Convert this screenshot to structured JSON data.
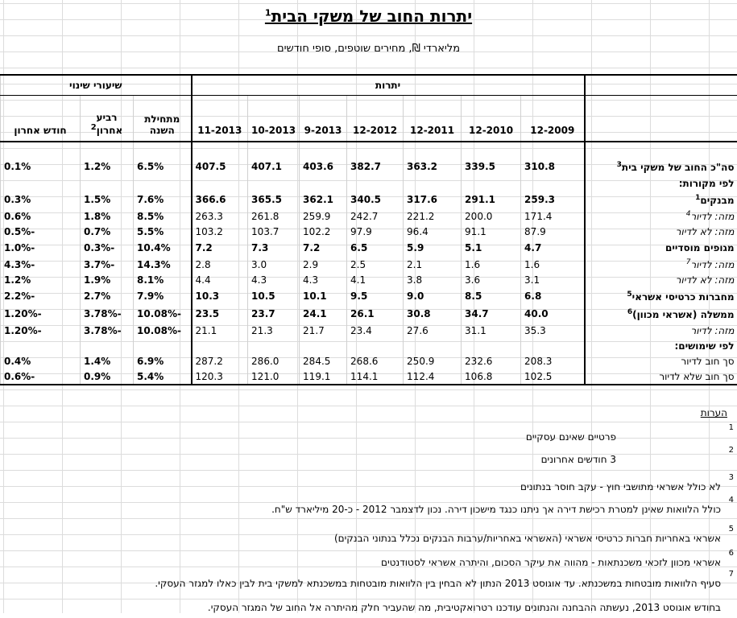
{
  "title": "יתרות החוב של משקי הבית",
  "title_sup": "1",
  "subtitle": "מליארדי ₪, מחירים שוטפים, סופי חודשים",
  "headers": {
    "group_balances": "יתרות",
    "group_change": "שיעורי שינוי",
    "periods": [
      "12-2009",
      "12-2010",
      "12-2011",
      "12-2012",
      "9-2013",
      "10-2013",
      "11-2013"
    ],
    "since_start_year": "מתחילת השנה",
    "last_quarter": "רביע אחרון",
    "last_quarter_sup": "2",
    "last_month": "חודש אחרון"
  },
  "rows": [
    {
      "label": "סה\"כ החוב של משקי בית",
      "sup": "3",
      "bold": true,
      "values": [
        "310.8",
        "339.5",
        "363.2",
        "382.7",
        "403.6",
        "407.1",
        "407.5"
      ],
      "changes": [
        "6.5%",
        "1.2%",
        "0.1%"
      ]
    },
    {
      "label": "לפי מקורות:",
      "section": true
    },
    {
      "label": "מבנקים",
      "sup": "1",
      "bold": true,
      "values": [
        "259.3",
        "291.1",
        "317.6",
        "340.5",
        "362.1",
        "365.5",
        "366.6"
      ],
      "changes": [
        "7.6%",
        "1.5%",
        "0.3%"
      ]
    },
    {
      "label": "מזה: לדיור",
      "sup": "4",
      "italic": true,
      "values": [
        "171.4",
        "200.0",
        "221.2",
        "242.7",
        "259.9",
        "261.8",
        "263.3"
      ],
      "changes": [
        "8.5%",
        "1.8%",
        "0.6%"
      ]
    },
    {
      "label": "מזה: לא לדיור",
      "italic": true,
      "values": [
        "87.9",
        "91.1",
        "96.4",
        "97.9",
        "102.2",
        "103.7",
        "103.2"
      ],
      "changes": [
        "5.5%",
        "0.7%",
        "-0.5%"
      ]
    },
    {
      "label": "מגופים מוסדיים",
      "bold": true,
      "values": [
        "4.7",
        "5.1",
        "5.9",
        "6.5",
        "7.2",
        "7.3",
        "7.2"
      ],
      "changes": [
        "10.4%",
        "-0.3%",
        "-1.0%"
      ]
    },
    {
      "label": "מזה: לדיור",
      "sup": "7",
      "italic": true,
      "values": [
        "1.6",
        "1.6",
        "2.1",
        "2.5",
        "2.9",
        "3.0",
        "2.8"
      ],
      "changes": [
        "14.3%",
        "-3.7%",
        "-4.3%"
      ]
    },
    {
      "label": "מזה: לא לדיור",
      "italic": true,
      "values": [
        "3.1",
        "3.6",
        "3.8",
        "4.1",
        "4.3",
        "4.3",
        "4.4"
      ],
      "changes": [
        "8.1%",
        "1.9%",
        "1.2%"
      ]
    },
    {
      "label": "מחברות כרטיסי אשראי",
      "sup": "5",
      "bold": true,
      "values": [
        "6.8",
        "8.5",
        "9.0",
        "9.5",
        "10.1",
        "10.5",
        "10.3"
      ],
      "changes": [
        "7.9%",
        "2.7%",
        "-2.2%"
      ]
    },
    {
      "label": "ממשלה (אשראי מכוון)",
      "sup": "6",
      "bold": true,
      "values": [
        "40.0",
        "34.7",
        "30.8",
        "26.1",
        "24.1",
        "23.7",
        "23.5"
      ],
      "changes": [
        "-10.08%",
        "-3.78%",
        "-1.20%"
      ]
    },
    {
      "label": "מזה: לדיור",
      "italic": true,
      "values": [
        "35.3",
        "31.1",
        "27.6",
        "23.4",
        "21.7",
        "21.3",
        "21.1"
      ],
      "changes": [
        "-10.08%",
        "-3.78%",
        "-1.20%"
      ]
    },
    {
      "label": "לפי שימושים:",
      "section": true
    },
    {
      "label": "סך חוב לדיור",
      "values": [
        "208.3",
        "232.6",
        "250.9",
        "268.6",
        "284.5",
        "286.0",
        "287.2"
      ],
      "changes": [
        "6.9%",
        "1.4%",
        "0.4%"
      ]
    },
    {
      "label": "סך חוב שלא לדיור",
      "values": [
        "102.5",
        "106.8",
        "112.4",
        "114.1",
        "119.1",
        "121.0",
        "120.3"
      ],
      "changes": [
        "5.4%",
        "0.9%",
        "-0.6%"
      ]
    }
  ],
  "notes_title": "הערות",
  "notes": [
    {
      "num": "1",
      "text": "פרטיים שאינם עסקיים"
    },
    {
      "num": "2",
      "text": "3 חודשים אחרונים"
    },
    {
      "num": "3",
      "text": "לא כולל אשראי מתושבי חוץ - עקב חוסר בנתונים"
    },
    {
      "num": "4",
      "text": "כולל הלוואות שאינן למטרת רכישת דירה אך ניתנו כנגד מישכון דירה. נכון לדצמבר 2012 - כ-20 מיליארד ש\"ח."
    },
    {
      "num": "5",
      "text": "אשראי באחריות חברות כרטיסי אשראי (האשראי באחריות/ערבות הבנקים נכלל בנתוני הבנקים)"
    },
    {
      "num": "6",
      "text": "אשראי מכוון לזכאי משכנתאות - מהווה את עיקר הסכום, והיתרה אשראי לסטודנטים"
    },
    {
      "num": "7",
      "text": "סעיף הלוואות מובטחות במשכנתא. עד אוגוסט 2013 הנתון לא הבחין בין הלוואות מובטחות במשכנתא למשקי בית לבין כאלו למגזר העסקי."
    },
    {
      "num": "",
      "text": "בחודש אוגוסט 2013, נעשתה ההבחנה והנתונים עודכנו רטרואקטיבית, מה שהעביר חלק מהיתרה אל החוב של המגזר העסקי."
    }
  ]
}
